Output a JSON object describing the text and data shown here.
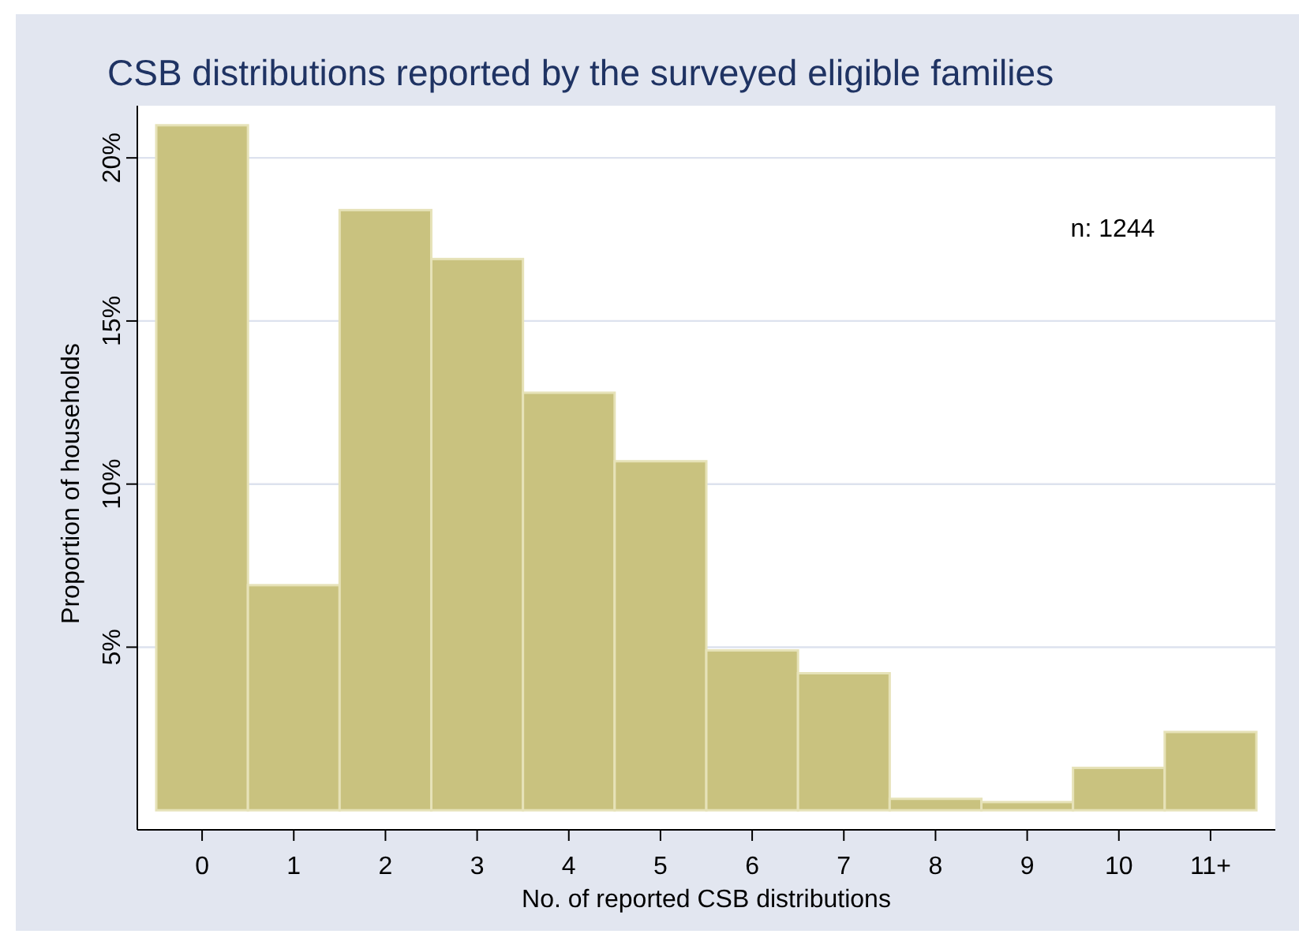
{
  "chart_data": {
    "type": "bar",
    "title": "CSB distributions reported by the surveyed eligible families",
    "xlabel": "No. of reported CSB distributions",
    "ylabel": "Proportion of households",
    "categories": [
      "0",
      "1",
      "2",
      "3",
      "4",
      "5",
      "6",
      "7",
      "8",
      "9",
      "10",
      "11+"
    ],
    "values": [
      21.0,
      6.9,
      18.4,
      16.9,
      12.8,
      10.7,
      4.9,
      4.2,
      0.35,
      0.25,
      1.3,
      2.4
    ],
    "color": "#c9c27f",
    "ylim": [
      -0.6,
      21.6
    ],
    "yticks": [
      {
        "value": 5,
        "label": "5%"
      },
      {
        "value": 10,
        "label": "10%"
      },
      {
        "value": 15,
        "label": "15%"
      },
      {
        "value": 20,
        "label": "20%"
      }
    ],
    "grid": "y",
    "annotations": [
      "n: 1244"
    ]
  }
}
